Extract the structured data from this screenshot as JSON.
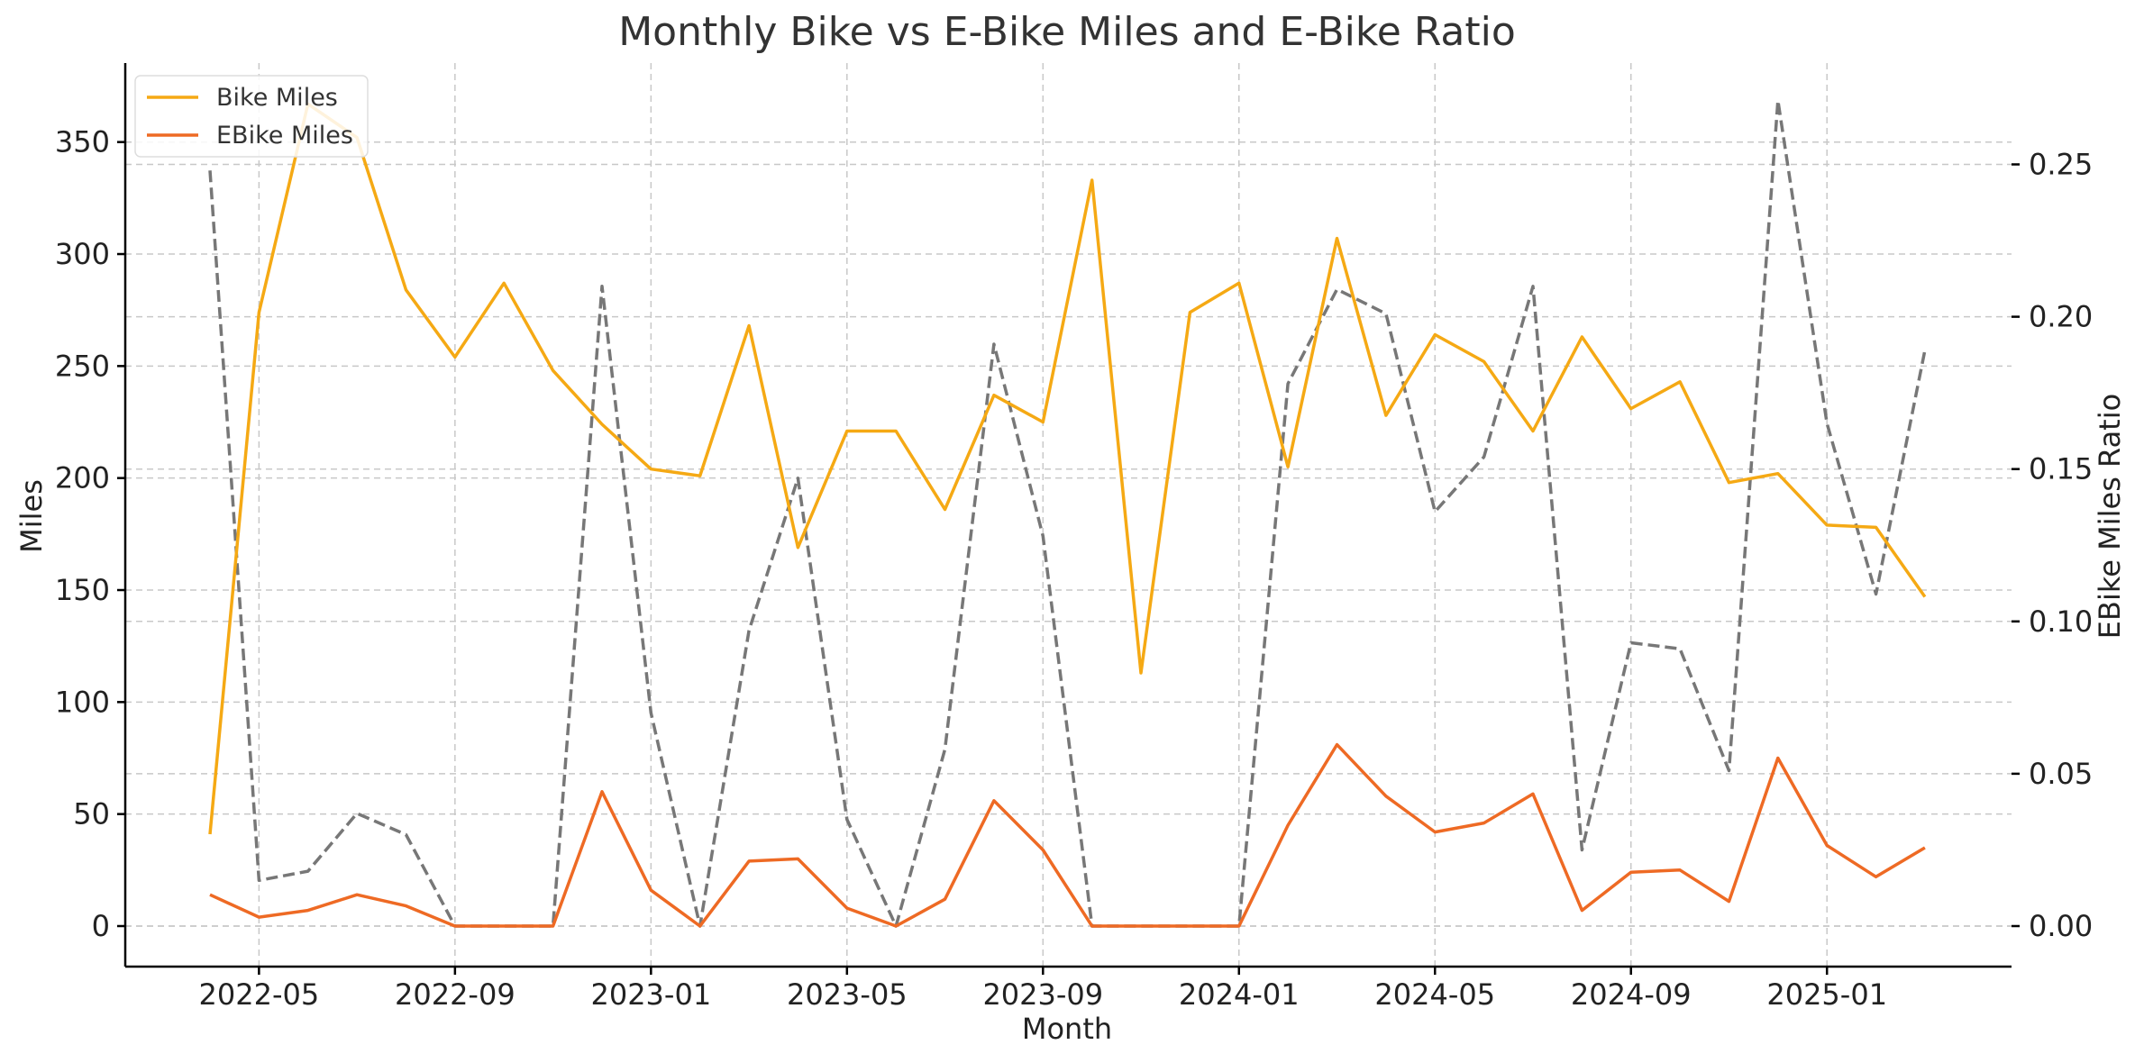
{
  "chart_data": {
    "type": "line",
    "title": "Monthly Bike vs E-Bike Miles and E-Bike Ratio",
    "xlabel": "Month",
    "ylabel": "Miles",
    "ylabel_right": "EBike Miles Ratio",
    "x": [
      "2022-04",
      "2022-05",
      "2022-06",
      "2022-07",
      "2022-08",
      "2022-09",
      "2022-10",
      "2022-11",
      "2022-12",
      "2023-01",
      "2023-02",
      "2023-03",
      "2023-04",
      "2023-05",
      "2023-06",
      "2023-07",
      "2023-08",
      "2023-09",
      "2023-10",
      "2023-11",
      "2023-12",
      "2024-01",
      "2024-02",
      "2024-03",
      "2024-04",
      "2024-05",
      "2024-06",
      "2024-07",
      "2024-08",
      "2024-09",
      "2024-10",
      "2024-11",
      "2024-12",
      "2025-01",
      "2025-02",
      "2025-03"
    ],
    "x_ticks": [
      "2022-05",
      "2022-09",
      "2023-01",
      "2023-05",
      "2023-09",
      "2024-01",
      "2024-05",
      "2024-09",
      "2025-01"
    ],
    "ylim_left": [
      -17.7,
      385
    ],
    "yticks_left": [
      0,
      50,
      100,
      150,
      200,
      250,
      300,
      350
    ],
    "ylim_right": [
      -0.013,
      0.283
    ],
    "yticks_right": [
      0.0,
      0.05,
      0.1,
      0.15,
      0.2,
      0.25
    ],
    "yticks_right_labels": [
      "0.00",
      "0.05",
      "0.10",
      "0.15",
      "0.20",
      "0.25"
    ],
    "grid": true,
    "legend_position": "top-left",
    "series": [
      {
        "name": "Bike Miles",
        "axis": "left",
        "color": "#F5A914",
        "style": "solid",
        "values": [
          41,
          274,
          367,
          352,
          284,
          254,
          287,
          248,
          224,
          204,
          201,
          268,
          169,
          221,
          221,
          186,
          237,
          225,
          333,
          113,
          274,
          287,
          205,
          307,
          228,
          264,
          252,
          221,
          263,
          231,
          243,
          198,
          202,
          179,
          178,
          147
        ]
      },
      {
        "name": "EBike Miles",
        "axis": "left",
        "color": "#EE6A24",
        "style": "solid",
        "values": [
          14,
          4,
          7,
          14,
          9,
          0,
          0,
          0,
          60,
          16,
          0,
          29,
          30,
          8,
          0,
          12,
          56,
          34,
          0,
          0,
          0,
          0,
          45,
          81,
          58,
          42,
          46,
          59,
          7,
          24,
          25,
          11,
          75,
          36,
          22,
          35
        ]
      },
      {
        "axis": "right",
        "color": "#777777",
        "style": "dashed",
        "values": [
          0.248,
          0.015,
          0.018,
          0.037,
          0.03,
          0.0,
          0.0,
          0.0,
          0.21,
          0.07,
          0.0,
          0.097,
          0.147,
          0.035,
          0.0,
          0.058,
          0.191,
          0.128,
          0.0,
          0.0,
          0.0,
          0.0,
          0.178,
          0.209,
          0.201,
          0.136,
          0.154,
          0.21,
          0.025,
          0.093,
          0.091,
          0.051,
          0.271,
          0.165,
          0.109,
          0.189
        ]
      }
    ]
  }
}
